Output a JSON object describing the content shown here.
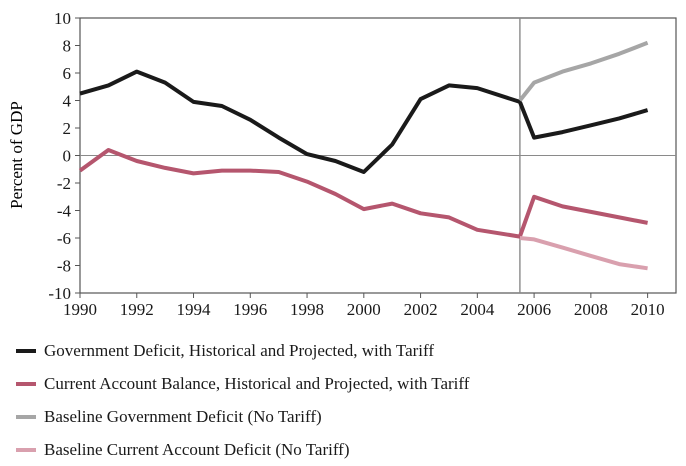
{
  "chart_data": {
    "type": "line",
    "title": "",
    "xlabel": "",
    "ylabel": "Percent of GDP",
    "xlim": [
      1990,
      2011
    ],
    "ylim": [
      -10,
      10
    ],
    "x_ticks": [
      1990,
      1992,
      1994,
      1996,
      1998,
      2000,
      2002,
      2004,
      2006,
      2008,
      2010
    ],
    "y_ticks": [
      10,
      8,
      6,
      4,
      2,
      0,
      -2,
      -4,
      -6,
      -8,
      -10
    ],
    "grid": false,
    "reference_lines": {
      "y": 0,
      "x": 2005.5
    },
    "series": [
      {
        "name": "Government Deficit, Historical and Projected, with Tariff",
        "color": "#1a1a1a",
        "x": [
          1990,
          1991,
          1992,
          1993,
          1994,
          1995,
          1996,
          1997,
          1998,
          1999,
          2000,
          2001,
          2002,
          2003,
          2004,
          2005.5,
          2006,
          2007,
          2008,
          2009,
          2010
        ],
        "y": [
          4.5,
          5.1,
          6.1,
          5.3,
          3.9,
          3.6,
          2.6,
          1.3,
          0.1,
          -0.4,
          -1.2,
          0.8,
          4.1,
          5.1,
          4.9,
          3.9,
          1.3,
          1.7,
          2.2,
          2.7,
          3.3
        ]
      },
      {
        "name": "Current Account Balance, Historical and Projected, with Tariff",
        "color": "#b5566e",
        "x": [
          1990,
          1991,
          1992,
          1993,
          1994,
          1995,
          1996,
          1997,
          1998,
          1999,
          2000,
          2001,
          2002,
          2003,
          2004,
          2005.5,
          2006,
          2007,
          2008,
          2009,
          2010
        ],
        "y": [
          -1.1,
          0.4,
          -0.4,
          -0.9,
          -1.3,
          -1.1,
          -1.1,
          -1.2,
          -1.9,
          -2.8,
          -3.9,
          -3.5,
          -4.2,
          -4.5,
          -5.4,
          -5.9,
          -3.0,
          -3.7,
          -4.1,
          -4.5,
          -4.9
        ]
      },
      {
        "name": "Baseline Government Deficit (No Tariff)",
        "color": "#a6a6a6",
        "x": [
          2005.5,
          2006,
          2007,
          2008,
          2009,
          2010
        ],
        "y": [
          4.0,
          5.3,
          6.1,
          6.7,
          7.4,
          8.2
        ]
      },
      {
        "name": "Baseline Current Account Deficit (No Tariff)",
        "color": "#d9a0ae",
        "x": [
          2005.5,
          2006,
          2007,
          2008,
          2009,
          2010
        ],
        "y": [
          -6.0,
          -6.1,
          -6.7,
          -7.3,
          -7.9,
          -8.2
        ]
      }
    ]
  }
}
